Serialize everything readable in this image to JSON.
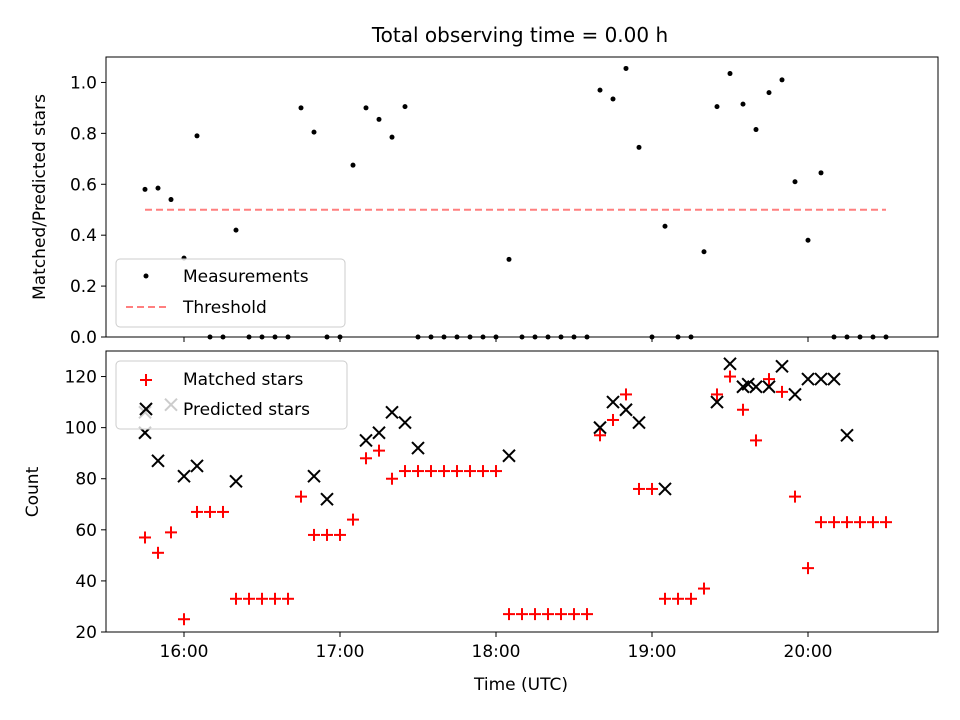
{
  "figure": {
    "title": "Total observing time = 0.00 h",
    "x_label": "Time (UTC)"
  },
  "chart_data": [
    {
      "type": "scatter",
      "ylabel": "Matched/Predicted stars",
      "xlim": [
        "15:30",
        "20:50"
      ],
      "ylim": [
        0,
        1.1
      ],
      "y_ticks": [
        0.0,
        0.2,
        0.4,
        0.6,
        0.8,
        1.0
      ],
      "y_tick_labels": [
        "0.0",
        "0.2",
        "0.4",
        "0.6",
        "0.8",
        "1.0"
      ],
      "grid": false,
      "legend_position": "lower-left",
      "series": [
        {
          "name": "Measurements",
          "marker": "dot",
          "color": "#000000",
          "x": [
            "15:45",
            "15:50",
            "15:55",
            "16:00",
            "16:05",
            "16:10",
            "16:15",
            "16:20",
            "16:25",
            "16:30",
            "16:35",
            "16:40",
            "16:45",
            "16:50",
            "16:55",
            "17:00",
            "17:05",
            "17:10",
            "17:15",
            "17:20",
            "17:25",
            "17:30",
            "17:35",
            "17:40",
            "17:45",
            "17:50",
            "17:55",
            "18:00",
            "18:05",
            "18:10",
            "18:15",
            "18:20",
            "18:25",
            "18:30",
            "18:35",
            "18:40",
            "18:45",
            "18:50",
            "18:55",
            "19:00",
            "19:05",
            "19:10",
            "19:15",
            "19:20",
            "19:25",
            "19:30",
            "19:35",
            "19:40",
            "19:45",
            "19:50",
            "19:55",
            "20:00",
            "20:05",
            "20:10",
            "20:15",
            "20:20",
            "20:25",
            "20:30"
          ],
          "y": [
            0.58,
            0.585,
            0.54,
            0.31,
            0.79,
            0.0,
            0.0,
            0.42,
            0.0,
            0.0,
            0.0,
            0.0,
            0.9,
            0.805,
            0.0,
            0.0,
            0.675,
            0.9,
            0.855,
            0.785,
            0.905,
            0.0,
            0.0,
            0.0,
            0.0,
            0.0,
            0.0,
            0.0,
            0.305,
            0.0,
            0.0,
            0.0,
            0.0,
            0.0,
            0.0,
            0.97,
            0.935,
            1.055,
            0.745,
            0.0,
            0.435,
            0.0,
            0.0,
            0.335,
            0.905,
            1.035,
            0.915,
            0.815,
            0.96,
            1.01,
            0.61,
            0.38,
            0.645,
            0.0,
            0.0,
            0.0,
            0.0,
            0.0
          ]
        },
        {
          "name": "Threshold",
          "marker": "dashed-line",
          "color": "#ff7f7f",
          "x": [
            "15:45",
            "20:30"
          ],
          "y": [
            0.5,
            0.5
          ]
        }
      ]
    },
    {
      "type": "scatter",
      "ylabel": "Count",
      "xlim": [
        "15:30",
        "20:50"
      ],
      "ylim": [
        20,
        130
      ],
      "y_ticks": [
        20,
        40,
        60,
        80,
        100,
        120
      ],
      "x_ticks": [
        "16:00",
        "17:00",
        "18:00",
        "19:00",
        "20:00"
      ],
      "grid": false,
      "legend_position": "upper-left",
      "series": [
        {
          "name": "Matched stars",
          "marker": "plus",
          "color": "#ff0000",
          "x": [
            "15:45",
            "15:50",
            "15:55",
            "16:00",
            "16:05",
            "16:10",
            "16:15",
            "16:20",
            "16:25",
            "16:30",
            "16:35",
            "16:40",
            "16:45",
            "16:50",
            "16:55",
            "17:00",
            "17:05",
            "17:10",
            "17:15",
            "17:20",
            "17:25",
            "17:30",
            "17:35",
            "17:40",
            "17:45",
            "17:50",
            "17:55",
            "18:00",
            "18:05",
            "18:10",
            "18:15",
            "18:20",
            "18:25",
            "18:30",
            "18:35",
            "18:40",
            "18:45",
            "18:50",
            "18:55",
            "19:00",
            "19:05",
            "19:10",
            "19:15",
            "19:20",
            "19:25",
            "19:30",
            "19:35",
            "19:40",
            "19:45",
            "19:50",
            "19:55",
            "20:00",
            "20:05",
            "20:10",
            "20:15",
            "20:20",
            "20:25",
            "20:30"
          ],
          "y": [
            57,
            51,
            59,
            25,
            67,
            67,
            67,
            33,
            33,
            33,
            33,
            33,
            73,
            58,
            58,
            58,
            64,
            88,
            91,
            80,
            83,
            83,
            83,
            83,
            83,
            83,
            83,
            83,
            27,
            27,
            27,
            27,
            27,
            27,
            27,
            97,
            103,
            113,
            76,
            76,
            33,
            33,
            33,
            37,
            113,
            120,
            107,
            95,
            119,
            114,
            73,
            45,
            63,
            63,
            63,
            63,
            63,
            63
          ]
        },
        {
          "name": "Predicted stars",
          "marker": "x",
          "color": "#000000",
          "x": [
            "15:45",
            "15:45",
            "15:50",
            "15:55",
            "16:00",
            "16:05",
            "16:20",
            "16:50",
            "16:55",
            "17:10",
            "17:15",
            "17:20",
            "17:25",
            "17:30",
            "18:05",
            "18:40",
            "18:45",
            "18:50",
            "18:55",
            "19:05",
            "19:25",
            "19:30",
            "19:35",
            "19:37",
            "19:40",
            "19:45",
            "19:50",
            "19:55",
            "20:00",
            "20:05",
            "20:10",
            "20:15"
          ],
          "y": [
            98,
            106,
            87,
            109,
            81,
            85,
            79,
            81,
            72,
            95,
            98,
            106,
            102,
            92,
            89,
            100,
            110,
            107,
            102,
            76,
            110,
            125,
            116,
            117,
            116,
            116,
            124,
            113,
            119,
            119,
            119,
            97
          ]
        }
      ]
    }
  ]
}
